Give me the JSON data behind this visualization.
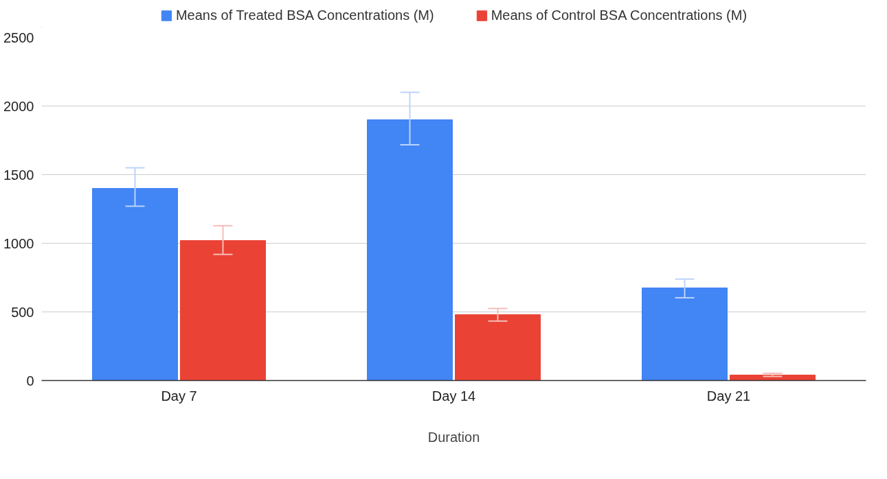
{
  "chart_data": {
    "type": "bar",
    "xlabel": "Duration",
    "categories": [
      "Day 7",
      "Day 14",
      "Day 21"
    ],
    "series": [
      {
        "name": "Means of Treated BSA Concentrations (M)",
        "color": "#4285f4",
        "values": [
          1400,
          1900,
          675
        ],
        "errors": [
          [
            1270,
            1550
          ],
          [
            1717,
            2100
          ],
          [
            603,
            739
          ]
        ]
      },
      {
        "name": "Means of Control BSA Concentrations (M)",
        "color": "#ea4335",
        "values": [
          1020,
          480,
          40
        ],
        "errors": [
          [
            919,
            1128
          ],
          [
            433,
            525
          ],
          [
            30,
            53
          ]
        ]
      }
    ],
    "ylim": [
      0,
      2500
    ],
    "yticks": [
      0,
      500,
      1000,
      1500,
      2000,
      2500
    ],
    "grid": "y",
    "legend": "top"
  }
}
